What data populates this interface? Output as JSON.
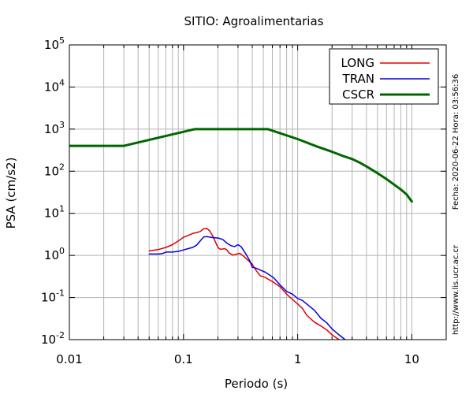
{
  "chart_data": {
    "type": "line",
    "title": "SITIO: Agroalimentarias",
    "xlabel": "Periodo (s)",
    "ylabel": "PSA (cm/s2)",
    "x_scale": "log",
    "y_scale": "log",
    "xlim": [
      0.01,
      20
    ],
    "ylim": [
      0.01,
      100000
    ],
    "x_ticks": [
      {
        "v": 0.01,
        "label": "0.01"
      },
      {
        "v": 0.1,
        "label": "0.1"
      },
      {
        "v": 1,
        "label": "1"
      },
      {
        "v": 10,
        "label": "10"
      }
    ],
    "y_ticks": [
      {
        "v": 0.01,
        "base": "10",
        "exp": "-2"
      },
      {
        "v": 0.1,
        "base": "10",
        "exp": "-1"
      },
      {
        "v": 1,
        "base": "10",
        "exp": "0"
      },
      {
        "v": 10,
        "base": "10",
        "exp": "1"
      },
      {
        "v": 100,
        "base": "10",
        "exp": "2"
      },
      {
        "v": 1000,
        "base": "10",
        "exp": "3"
      },
      {
        "v": 10000,
        "base": "10",
        "exp": "4"
      },
      {
        "v": 100000,
        "base": "10",
        "exp": "5"
      }
    ],
    "grid": true,
    "legend_position": "top-right",
    "series": [
      {
        "name": "LONG",
        "color": "#e00000",
        "points": [
          [
            0.05,
            1.28
          ],
          [
            0.06,
            1.38
          ],
          [
            0.07,
            1.55
          ],
          [
            0.08,
            1.8
          ],
          [
            0.09,
            2.2
          ],
          [
            0.1,
            2.7
          ],
          [
            0.11,
            3.0
          ],
          [
            0.12,
            3.3
          ],
          [
            0.13,
            3.5
          ],
          [
            0.14,
            3.7
          ],
          [
            0.15,
            4.3
          ],
          [
            0.16,
            4.4
          ],
          [
            0.17,
            3.8
          ],
          [
            0.18,
            2.9
          ],
          [
            0.19,
            2.1
          ],
          [
            0.2,
            1.55
          ],
          [
            0.21,
            1.4
          ],
          [
            0.22,
            1.42
          ],
          [
            0.23,
            1.45
          ],
          [
            0.24,
            1.35
          ],
          [
            0.25,
            1.15
          ],
          [
            0.27,
            1.02
          ],
          [
            0.29,
            1.07
          ],
          [
            0.31,
            1.12
          ],
          [
            0.33,
            1.0
          ],
          [
            0.36,
            0.8
          ],
          [
            0.4,
            0.62
          ],
          [
            0.43,
            0.45
          ],
          [
            0.47,
            0.33
          ],
          [
            0.52,
            0.3
          ],
          [
            0.6,
            0.24
          ],
          [
            0.7,
            0.18
          ],
          [
            0.8,
            0.12
          ],
          [
            0.9,
            0.09
          ],
          [
            1.0,
            0.07
          ],
          [
            1.1,
            0.055
          ],
          [
            1.2,
            0.038
          ],
          [
            1.4,
            0.026
          ],
          [
            1.6,
            0.021
          ],
          [
            1.8,
            0.017
          ],
          [
            2.0,
            0.013
          ],
          [
            2.3,
            0.01
          ]
        ]
      },
      {
        "name": "TRAN",
        "color": "#0000e0",
        "points": [
          [
            0.05,
            1.08
          ],
          [
            0.06,
            1.08
          ],
          [
            0.065,
            1.1
          ],
          [
            0.07,
            1.2
          ],
          [
            0.08,
            1.2
          ],
          [
            0.09,
            1.25
          ],
          [
            0.1,
            1.35
          ],
          [
            0.11,
            1.45
          ],
          [
            0.12,
            1.55
          ],
          [
            0.13,
            1.75
          ],
          [
            0.14,
            2.2
          ],
          [
            0.15,
            2.75
          ],
          [
            0.16,
            2.8
          ],
          [
            0.18,
            2.65
          ],
          [
            0.2,
            2.6
          ],
          [
            0.22,
            2.4
          ],
          [
            0.24,
            1.95
          ],
          [
            0.26,
            1.7
          ],
          [
            0.28,
            1.62
          ],
          [
            0.3,
            1.8
          ],
          [
            0.32,
            1.6
          ],
          [
            0.35,
            1.1
          ],
          [
            0.38,
            0.75
          ],
          [
            0.4,
            0.52
          ],
          [
            0.43,
            0.5
          ],
          [
            0.47,
            0.45
          ],
          [
            0.52,
            0.4
          ],
          [
            0.57,
            0.34
          ],
          [
            0.62,
            0.29
          ],
          [
            0.7,
            0.2
          ],
          [
            0.8,
            0.14
          ],
          [
            0.9,
            0.12
          ],
          [
            1.0,
            0.095
          ],
          [
            1.1,
            0.085
          ],
          [
            1.2,
            0.07
          ],
          [
            1.4,
            0.05
          ],
          [
            1.6,
            0.032
          ],
          [
            1.8,
            0.025
          ],
          [
            2.0,
            0.018
          ],
          [
            2.3,
            0.013
          ],
          [
            2.6,
            0.01
          ]
        ]
      },
      {
        "name": "CSCR",
        "color": "#006600",
        "points": [
          [
            0.01,
            400
          ],
          [
            0.03,
            400
          ],
          [
            0.125,
            1000
          ],
          [
            0.55,
            1000
          ],
          [
            1.0,
            580
          ],
          [
            1.5,
            380
          ],
          [
            2.0,
            290
          ],
          [
            2.5,
            230
          ],
          [
            3.0,
            195
          ],
          [
            3.5,
            160
          ],
          [
            4.0,
            130
          ],
          [
            5.0,
            90
          ],
          [
            6.0,
            65
          ],
          [
            7.0,
            48
          ],
          [
            8.0,
            37
          ],
          [
            9.0,
            28
          ],
          [
            10.0,
            19
          ]
        ]
      }
    ]
  },
  "side_labels": {
    "timestamp": "Fecha: 2020-06-22 Hora: 03:56:36",
    "website": "http://www.lis.ucr.ac.cr"
  }
}
